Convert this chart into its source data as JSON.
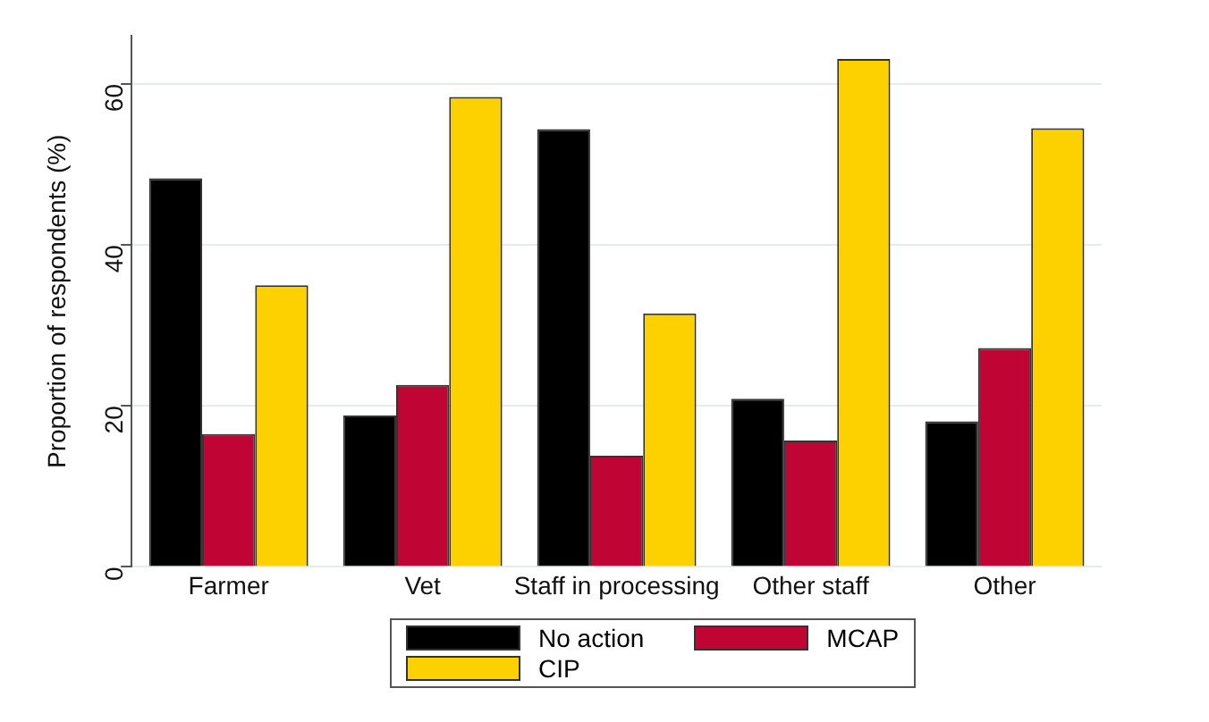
{
  "chart_data": {
    "type": "bar",
    "ylabel": "Proportion of respondents (%)",
    "categories": [
      "Farmer",
      "Vet",
      "Staff in processing",
      "Other staff",
      "Other"
    ],
    "series": [
      {
        "name": "No action",
        "color": "#000000",
        "values": [
          48.3,
          18.8,
          54.4,
          20.9,
          18.1
        ]
      },
      {
        "name": "MCAP",
        "color": "#c00535",
        "values": [
          16.5,
          22.6,
          13.8,
          15.7,
          27.2
        ]
      },
      {
        "name": "CIP",
        "color": "#fdd000",
        "values": [
          35.0,
          58.4,
          31.5,
          63.1,
          54.5
        ]
      }
    ],
    "ylim": [
      0,
      66
    ],
    "yticks": [
      0,
      20,
      40,
      60
    ],
    "grid": "y",
    "legend": "bottom"
  }
}
